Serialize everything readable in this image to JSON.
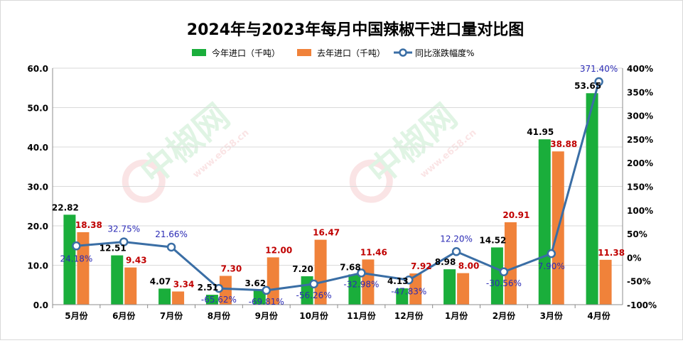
{
  "chart_data": {
    "type": "bar",
    "title": "2024年与2023年每月中国辣椒干进口量对比图",
    "categories": [
      "5月份",
      "6月份",
      "7月份",
      "8月份",
      "9月份",
      "10月份",
      "11月份",
      "12月份",
      "1月份",
      "2月份",
      "3月份",
      "4月份"
    ],
    "series": [
      {
        "name": "今年进口（千吨）",
        "kind": "bar",
        "axis": "left",
        "color": "#1aae3b",
        "values": [
          22.82,
          12.51,
          4.07,
          2.51,
          3.62,
          7.2,
          7.68,
          4.13,
          8.98,
          14.52,
          41.95,
          53.65
        ],
        "labels": [
          "22.82",
          "12.51",
          "4.07",
          "2.51",
          "3.62",
          "7.20",
          "7.68",
          "4.13",
          "8.98",
          "14.52",
          "41.95",
          "53.65"
        ]
      },
      {
        "name": "去年进口（千吨）",
        "kind": "bar",
        "axis": "left",
        "color": "#f0823a",
        "values": [
          18.38,
          9.43,
          3.34,
          7.3,
          12.0,
          16.47,
          11.46,
          7.92,
          8.0,
          20.91,
          38.88,
          11.38
        ],
        "labels": [
          "18.38",
          "9.43",
          "3.34",
          "7.30",
          "12.00",
          "16.47",
          "11.46",
          "7.92",
          "8.00",
          "20.91",
          "38.88",
          "11.38"
        ]
      },
      {
        "name": "同比涨跌幅度%",
        "kind": "line",
        "axis": "right",
        "color": "#3a6ea5",
        "values": [
          24.18,
          32.75,
          21.66,
          -65.62,
          -69.81,
          -56.26,
          -32.98,
          -47.83,
          12.2,
          -30.56,
          7.9,
          371.4
        ],
        "labels": [
          "24.18%",
          "32.75%",
          "21.66%",
          "-65.62%",
          "-69.81%",
          "-56.26%",
          "-32.98%",
          "-47.83%",
          "12.20%",
          "-30.56%",
          "7.90%",
          "371.40%"
        ]
      }
    ],
    "y_left": {
      "min": 0,
      "max": 60,
      "ticks": [
        "0.0",
        "10.0",
        "20.0",
        "30.0",
        "40.0",
        "50.0",
        "60.0"
      ]
    },
    "y_right": {
      "min": -100,
      "max": 400,
      "ticks": [
        "-100%",
        "-50%",
        "0%",
        "50%",
        "100%",
        "150%",
        "200%",
        "250%",
        "300%",
        "350%",
        "400%"
      ]
    },
    "grid": true,
    "legend_position": "top-center",
    "watermark": {
      "text": "中椒网",
      "url": "www.e658.cn"
    },
    "colors": {
      "bar_label_2024": "#000000",
      "bar_label_2023": "#c00000",
      "line_label": "#2b2bb5"
    }
  }
}
